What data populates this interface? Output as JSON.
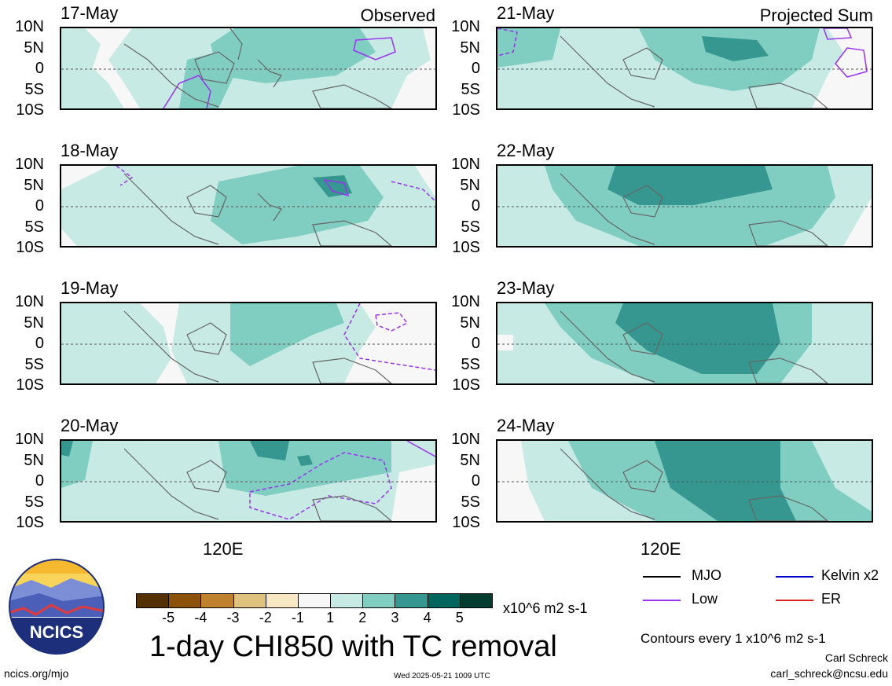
{
  "panels_left": [
    {
      "date": "17-May",
      "header": "Observed"
    },
    {
      "date": "18-May",
      "header": ""
    },
    {
      "date": "19-May",
      "header": ""
    },
    {
      "date": "20-May",
      "header": ""
    }
  ],
  "panels_right": [
    {
      "date": "21-May",
      "header": "Projected Sum"
    },
    {
      "date": "22-May",
      "header": ""
    },
    {
      "date": "23-May",
      "header": ""
    },
    {
      "date": "24-May",
      "header": ""
    }
  ],
  "lat_labels": [
    "10N",
    "5N",
    "0",
    "5S",
    "10S"
  ],
  "lon_label": "120E",
  "colorbar": {
    "colors": [
      "#543005",
      "#8c510a",
      "#bf812d",
      "#dfc27d",
      "#f6e8c3",
      "#f7f7f7",
      "#c7eae5",
      "#80cdc1",
      "#35978f",
      "#01665e",
      "#003c30"
    ],
    "ticks": [
      "-5",
      "-4",
      "-3",
      "-2",
      "-1",
      "1",
      "2",
      "3",
      "4",
      "5"
    ],
    "units": "x10^6 m2 s-1"
  },
  "title": "1-day CHI850 with TC removal",
  "legend": [
    {
      "label": "MJO",
      "color": "#000000"
    },
    {
      "label": "Kelvin x2",
      "color": "#0000cc"
    },
    {
      "label": "Low",
      "color": "#9933ee"
    },
    {
      "label": "ER",
      "color": "#dd2222"
    }
  ],
  "contour_note": "Contours every 1 x10^6 m2 s-1",
  "author": "Carl Schreck",
  "email": "carl_schreck@ncsu.edu",
  "website": "ncics.org/mjo",
  "timestamp": "Wed 2025-05-21 1009 UTC",
  "logo_text": "NCICS"
}
